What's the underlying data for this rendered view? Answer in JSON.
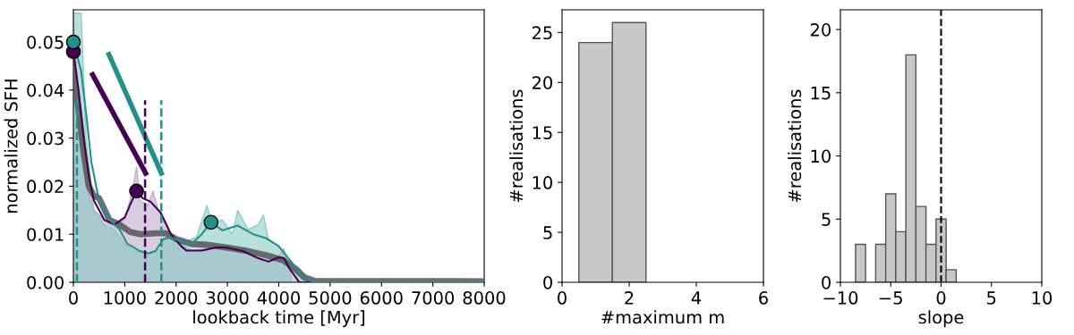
{
  "chart_data": [
    {
      "type": "line",
      "xlabel": "lookback time [Myr]",
      "ylabel": "normalized SFH",
      "xlim": [
        0,
        8000
      ],
      "ylim": [
        0,
        0.0567
      ],
      "xticks": [
        0,
        1000,
        2000,
        3000,
        4000,
        5000,
        6000,
        7000,
        8000
      ],
      "yticks": [
        {
          "value": 0,
          "label": "0.00"
        },
        {
          "value": 0.01,
          "label": "0.01"
        },
        {
          "value": 0.02,
          "label": "0.02"
        },
        {
          "value": 0.03,
          "label": "0.03"
        },
        {
          "value": 0.04,
          "label": "0.04"
        },
        {
          "value": 0.05,
          "label": "0.05"
        }
      ],
      "grid": false,
      "legend": false,
      "series": [
        {
          "type": "area",
          "color": "#b9a2c4",
          "x": [
            0,
            100,
            200,
            300,
            400,
            600,
            800,
            1000,
            1150,
            1230,
            1300,
            1450,
            1550,
            1650,
            1750,
            1900,
            2100,
            2300,
            2600,
            3000,
            3400,
            3700,
            4000,
            4100,
            4200,
            4250,
            8000
          ],
          "values": [
            0.054,
            0.038,
            0.025,
            0.018,
            0.015,
            0.013,
            0.012,
            0.013,
            0.019,
            0.024,
            0.017,
            0.016,
            0.019,
            0.015,
            0.013,
            0.01,
            0.008,
            0.0065,
            0.007,
            0.0072,
            0.006,
            0.0045,
            0.0055,
            0.007,
            0.0035,
            0,
            0
          ]
        },
        {
          "type": "area",
          "color": "#7fc7c0",
          "x": [
            0,
            150,
            250,
            400,
            600,
            800,
            1000,
            1200,
            1500,
            1700,
            1800,
            2000,
            2200,
            2400,
            2600,
            2700,
            2900,
            3100,
            3200,
            3400,
            3600,
            3700,
            3800,
            4000,
            4200,
            4400,
            4500,
            4600,
            8000
          ],
          "values": [
            0.056,
            0.056,
            0.03,
            0.015,
            0.012,
            0.011,
            0.008,
            0.0065,
            0.006,
            0.007,
            0.0095,
            0.009,
            0.0085,
            0.0095,
            0.016,
            0.012,
            0.013,
            0.01,
            0.015,
            0.011,
            0.012,
            0.014,
            0.009,
            0.0075,
            0.004,
            0.003,
            0.0015,
            0,
            0
          ]
        },
        {
          "type": "line",
          "color": "#555555",
          "x": [
            0,
            100,
            200,
            300,
            400,
            500,
            700,
            900,
            1100,
            1300,
            1600,
            1800,
            2000,
            2300,
            2600,
            3000,
            3400,
            3800,
            4100,
            4300,
            4500,
            4700,
            8000
          ],
          "values": [
            0.044,
            0.036,
            0.027,
            0.02,
            0.018,
            0.0175,
            0.013,
            0.012,
            0.0105,
            0.01,
            0.0102,
            0.0102,
            0.009,
            0.008,
            0.0078,
            0.0072,
            0.0065,
            0.0055,
            0.0045,
            0.003,
            0.001,
            0.0003,
            0.0002
          ]
        },
        {
          "type": "line",
          "color": "#440154",
          "x": [
            0,
            100,
            200,
            300,
            400,
            600,
            800,
            1000,
            1100,
            1230,
            1350,
            1500,
            1700,
            1900,
            2100,
            2200,
            2500,
            2800,
            3000,
            3300,
            3600,
            3800,
            4000,
            4100,
            4200,
            4400,
            8000
          ],
          "values": [
            0.048,
            0.04,
            0.03,
            0.022,
            0.017,
            0.013,
            0.012,
            0.0135,
            0.016,
            0.019,
            0.0175,
            0.0168,
            0.0145,
            0.01,
            0.0075,
            0.0066,
            0.0066,
            0.0073,
            0.0072,
            0.0065,
            0.005,
            0.0043,
            0.0052,
            0.005,
            0.003,
            0,
            0
          ]
        },
        {
          "type": "line",
          "color": "#21918c",
          "x": [
            0,
            150,
            250,
            350,
            500,
            700,
            900,
            1050,
            1300,
            1450,
            1600,
            1750,
            1900,
            2100,
            2300,
            2500,
            2680,
            2900,
            3200,
            3500,
            3750,
            4000,
            4300,
            4500,
            4700,
            8000
          ],
          "values": [
            0.05,
            0.044,
            0.035,
            0.025,
            0.017,
            0.013,
            0.011,
            0.008,
            0.0065,
            0.006,
            0.0065,
            0.009,
            0.0093,
            0.0085,
            0.008,
            0.01,
            0.0125,
            0.0108,
            0.0118,
            0.01,
            0.0092,
            0.0075,
            0.0035,
            0.0008,
            0,
            0
          ]
        },
        {
          "type": "line",
          "color": "#440154",
          "x": [
            374,
            1408
          ],
          "values": [
            0.0432,
            0.0227
          ]
        },
        {
          "type": "line",
          "color": "#21918c",
          "x": [
            692,
            1713
          ],
          "values": [
            0.0474,
            0.0227
          ]
        },
        {
          "type": "line",
          "color": "#21918c",
          "line_style": "dashed",
          "x": [
            69,
            69
          ],
          "values": [
            0,
            0.0379
          ]
        },
        {
          "type": "line",
          "color": "#440154",
          "line_style": "dashed",
          "x": [
            1396,
            1396
          ],
          "values": [
            0,
            0.0379
          ]
        },
        {
          "type": "line",
          "color": "#21918c",
          "line_style": "dashed",
          "x": [
            1713,
            1713
          ],
          "values": [
            0,
            0.0379
          ]
        },
        {
          "type": "scatter",
          "color": "#440154",
          "marker": "circle",
          "x": [
            0,
            1230
          ],
          "values": [
            0.048,
            0.019
          ]
        },
        {
          "type": "scatter",
          "color": "#21918c",
          "marker": "circle",
          "x": [
            0,
            2680
          ],
          "values": [
            0.05,
            0.0125
          ]
        }
      ]
    },
    {
      "type": "histogram",
      "xlabel": "#maximum m",
      "ylabel": "#realisations",
      "bins": [
        0.5,
        1.5,
        2.5
      ],
      "values": [
        24,
        26
      ],
      "color": "#c8c8c8",
      "xlim": [
        0,
        6
      ],
      "ylim": [
        0,
        27.27
      ],
      "xticks": [
        0,
        2,
        4,
        6
      ],
      "yticks": [
        0,
        5,
        10,
        15,
        20,
        25
      ],
      "grid": false
    },
    {
      "type": "histogram",
      "xlabel": "slope",
      "ylabel": "#realisations",
      "bins": [
        -8.5,
        -7.5,
        -6.5,
        -5.5,
        -4.5,
        -3.5,
        -2.5,
        -1.5,
        -0.5,
        0.5,
        1.5
      ],
      "values": [
        3,
        0,
        3,
        7,
        4,
        18,
        6,
        3,
        5,
        1
      ],
      "color": "#c8c8c8",
      "xlim": [
        -10,
        10
      ],
      "ylim": [
        0,
        21.56
      ],
      "xticks": [
        {
          "value": -10,
          "label": "−10"
        },
        {
          "value": -5,
          "label": "−5"
        },
        0,
        5,
        10
      ],
      "yticks": [
        0,
        5,
        10,
        15,
        20
      ],
      "grid": false,
      "ref_lines": [
        {
          "axis": "x",
          "value": 0,
          "color": "#000000",
          "line_style": "dashed"
        }
      ]
    }
  ]
}
